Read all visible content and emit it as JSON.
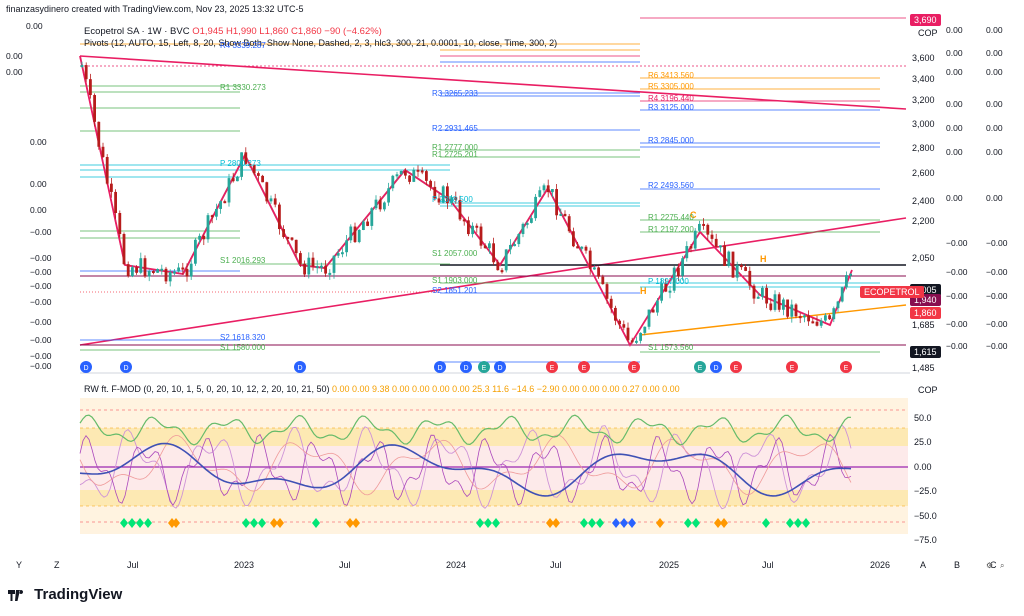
{
  "header": {
    "text": "finanzasydinero created with TradingView.com, Nov 23, 2025 13:32 UTC-5"
  },
  "legend": {
    "symbol": "Ecopetrol SA · 1W · BVC",
    "ohlc": "O1,945  H1,990  L1,860  C1,860  −90 (−4.62%)",
    "pivots": "Pivots (12, AUTO, 15, Left, 8, 20, Show Both, Show None, Dashed, 2, 3, hlc3, 300, 21, 0.0001, 10, close, Time, 300, 2)"
  },
  "oscillator_legend": {
    "name": "RW ft. F-MOD (0, 20, 10, 1, 5, 0, 20, 10, 12, 2, 20, 10, 21, 50)",
    "values": "0.00  0.00  9.38  0.00  0.00  0.00  0.00  25.3  11.6  −14.6  −2.90  0.00  0.00  0.00  0.27  0.00  0.00"
  },
  "currency": "COP",
  "price_tags": [
    {
      "label": "3,690",
      "price": 3690,
      "color": "#e91e63"
    },
    {
      "label": "2,005",
      "price": 2005,
      "color": "#131722"
    },
    {
      "label": "1,940",
      "price": 1940,
      "color": "#880e4f"
    },
    {
      "label": "1,860",
      "price": 1860,
      "color": "#f23645"
    },
    {
      "label": "1,615",
      "price": 1615,
      "color": "#131722"
    }
  ],
  "symbol_tag": "ECOPETROL",
  "price_axis": [
    "3,600",
    "3,400",
    "3,200",
    "3,000",
    "2,800",
    "2,600",
    "2,400",
    "2,200",
    "2,050",
    "1,810",
    "1,685",
    "1,485"
  ],
  "osc_axis": [
    "50.0",
    "25.0",
    "0.00",
    "−25.0",
    "−50.0",
    "−75.0"
  ],
  "time_axis": [
    "Y",
    "Z",
    "Jul",
    "2023",
    "Jul",
    "2024",
    "Jul",
    "2025",
    "Jul",
    "2026",
    "A",
    "B",
    "C"
  ],
  "left_axis": [
    "0.00",
    "0.00",
    "0.00",
    "0.00",
    "0.00",
    "0.00",
    "−0.00",
    "−0.00",
    "−0.00",
    "−0.00",
    "−0.00",
    "−0.00",
    "−0.00",
    "−0.00",
    "−0.00"
  ],
  "right_axis_a": [
    "0.00",
    "0.00",
    "0.00",
    "0.00",
    "0.00",
    "0.00",
    "0.00",
    "−0.00",
    "−0.00",
    "−0.00",
    "−0.00",
    "−0.00",
    "−0.00",
    "−0.00"
  ],
  "pivot_labels": [
    {
      "t": "R4  3339.287",
      "c": "#2962ff"
    },
    {
      "t": "R1  3330.273",
      "c": "#4caf50"
    },
    {
      "t": "P   2800.273",
      "c": "#00bcd4"
    },
    {
      "t": "S1  2016.293",
      "c": "#4caf50"
    },
    {
      "t": "R3  3265.233",
      "c": "#2962ff"
    },
    {
      "t": "R2  2931.465",
      "c": "#2962ff"
    },
    {
      "t": "R1  2777.000",
      "c": "#4caf50"
    },
    {
      "t": "R1  2725.201",
      "c": "#4caf50"
    },
    {
      "t": "P   2308.500",
      "c": "#00bcd4"
    },
    {
      "t": "S1  2057.000",
      "c": "#4caf50"
    },
    {
      "t": "S1  1903.000",
      "c": "#4caf50"
    },
    {
      "t": "S2  1851.201",
      "c": "#2962ff"
    },
    {
      "t": "R6  3413.560",
      "c": "#ff9800"
    },
    {
      "t": "R5  3305.000",
      "c": "#ff9800"
    },
    {
      "t": "R4  3196.440",
      "c": "#e91e63"
    },
    {
      "t": "R3  3125.000",
      "c": "#2962ff"
    },
    {
      "t": "R3  2845.000",
      "c": "#2962ff"
    },
    {
      "t": "R2  2493.560",
      "c": "#2962ff"
    },
    {
      "t": "R1  2275.440",
      "c": "#4caf50"
    },
    {
      "t": "R1  2197.200",
      "c": "#4caf50"
    },
    {
      "t": "P   1897.000",
      "c": "#00bcd4"
    },
    {
      "t": "S1  1573.560",
      "c": "#4caf50"
    },
    {
      "t": "S2  1618.320",
      "c": "#2962ff"
    },
    {
      "t": "S1  1580.000",
      "c": "#4caf50"
    }
  ],
  "bottom_icons": [
    "gear-icon",
    "zoom-icon"
  ],
  "footer": {
    "brand": "TradingView"
  }
}
